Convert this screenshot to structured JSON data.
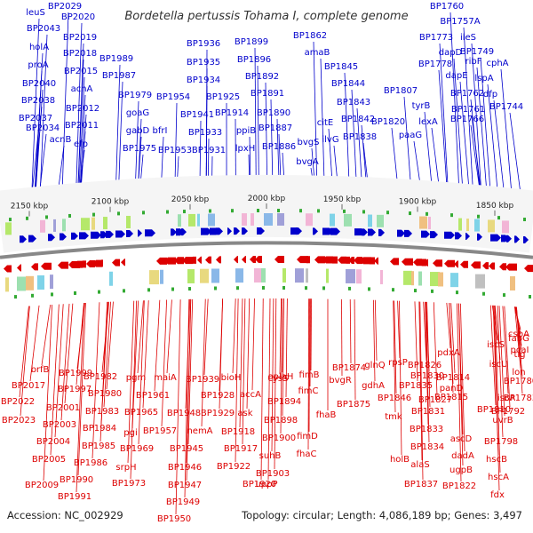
{
  "title": "Bordetella pertussis Tohama I, complete genome",
  "footer": {
    "accession": "Accession: NC_002929",
    "topology": "Topology: circular; Length: 4,086,189 bp; Genes: 3,497"
  },
  "colors": {
    "forward": "#0000cc",
    "reverse": "#dd0000",
    "backbone": "#888888",
    "tick_label_bg": "#ffffff"
  },
  "scale_ticks": [
    {
      "label": "2150 kbp"
    },
    {
      "label": "2100 kbp"
    },
    {
      "label": "2050 kbp"
    },
    {
      "label": "2000 kbp"
    },
    {
      "label": "1950 kbp"
    },
    {
      "label": "1900 kbp"
    },
    {
      "label": "1850 kbp"
    }
  ],
  "forward_genes": [
    "leuS",
    "BP2029",
    "BP2020",
    "BP2043",
    "BP2019",
    "holA",
    "proA",
    "BP2018",
    "BP2040",
    "BP2015",
    "acnA",
    "BP2038",
    "BP2012",
    "BP2037",
    "BP2011",
    "BP2034",
    "acnB",
    "efp",
    "BP1989",
    "BP1987",
    "BP1979",
    "goaG",
    "gabD",
    "BP1975",
    "bfrI",
    "BP1954",
    "BP1953",
    "BP1936",
    "BP1935",
    "BP1934",
    "BP1941",
    "BP1933",
    "BP1931",
    "BP1925",
    "BP1914",
    "BP1899",
    "BP1896",
    "BP1892",
    "BP1891",
    "BP1890",
    "ppiB",
    "BP1887",
    "lpxH",
    "BP1886",
    "BP1862",
    "amaB",
    "BP1845",
    "BP1844",
    "BP1843",
    "citE",
    "ilvG",
    "BP1842",
    "bvgS",
    "bvgA",
    "BP1838",
    "BP1820",
    "BP1807",
    "tyrB",
    "lexA",
    "paaG",
    "BP1760",
    "BP1757A",
    "ileS",
    "BP1773",
    "dapD",
    "BP1749",
    "BP1778",
    "ribF",
    "cphA",
    "dapE",
    "lspA",
    "BP1762",
    "dfp",
    "BP1761",
    "BP1744",
    "BP1766"
  ],
  "reverse_genes": [
    "brfB",
    "BP2017",
    "BP1999",
    "BP2022",
    "BP1997",
    "BP2023",
    "BP2001",
    "BP2003",
    "BP2004",
    "BP2005",
    "BP2009",
    "BP1982",
    "BP1980",
    "BP1983",
    "BP1984",
    "BP1985",
    "BP1986",
    "BP1990",
    "BP1991",
    "pgm",
    "BP1965",
    "pgi",
    "BP1969",
    "srpH",
    "BP1973",
    "maiA",
    "BP1961",
    "BP1957",
    "BP1948",
    "BP1945",
    "BP1946",
    "BP1947",
    "BP1949",
    "BP1950",
    "BP1939",
    "nemA",
    "BP1928",
    "bioH",
    "BP1929",
    "accA",
    "ask",
    "BP1918",
    "BP1917",
    "BP1922",
    "BP1920",
    "cysS",
    "oplaH",
    "BP1894",
    "BP1898",
    "BP1900",
    "suhB",
    "BP1903",
    "uppP",
    "fimB",
    "fimC",
    "fhaB",
    "fimD",
    "fhaC",
    "BP1874",
    "bvgR",
    "BP1875",
    "glnQ",
    "gdhA",
    "rpsP",
    "BP1846",
    "tmk",
    "holB",
    "BP1835",
    "BP1826",
    "BP1830",
    "BP1827",
    "BP1831",
    "BP1833",
    "BP1834",
    "alaS",
    "BP1837",
    "pdxA",
    "BP1814",
    "panD",
    "BP1815",
    "ascD",
    "dadA",
    "ugpB",
    "BP1822",
    "iscS",
    "iscU",
    "iscA",
    "hscB",
    "hscA",
    "fdx",
    "fabG",
    "pcaI",
    "BP1810",
    "BP1792",
    "uvrB",
    "BP1798",
    "cspA",
    "tig",
    "lon",
    "BP1780",
    "BP1783"
  ]
}
